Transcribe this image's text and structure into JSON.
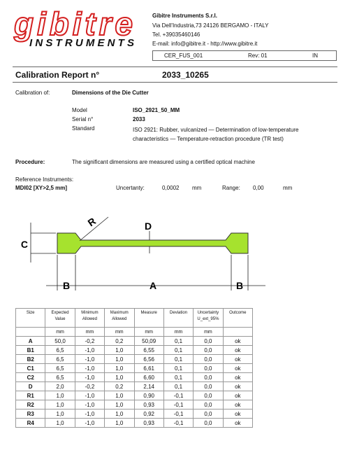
{
  "header": {
    "logo": {
      "brand": "gibitre",
      "sub": "INSTRUMENTS"
    },
    "company": [
      "Gibitre Instruments  S.r.l.",
      "Via Dell'Industria,73 24126 BERGAMO - ITALY",
      "Tel. +39035460146",
      "E-mail: info@gibitre.it - http://www.gibitre.it"
    ],
    "reference": {
      "code": "CER_FUS_001",
      "revision": "Rev: 01",
      "status": "IN"
    }
  },
  "title": {
    "label": "Calibration Report n°",
    "number": "2033_10265"
  },
  "calibration": {
    "label": "Calibration of:",
    "value": "Dimensions of the Die Cutter",
    "fields": [
      {
        "label": "Model",
        "value": "ISO_2921_50_MM"
      },
      {
        "label": "Serial n°",
        "value": "2033"
      },
      {
        "label": "Standard",
        "value": "ISO 2921: Rubber, vulcanized — Determination of low-temperature characteristics — Temperature-retraction procedure (TR test)"
      }
    ]
  },
  "procedure": {
    "label": "Procedure:",
    "text": "The significant dimensions are measured using a certified optical machine"
  },
  "reference_instruments": {
    "label": "Reference Instruments:",
    "instrument": "MDI02 [XY>2,5 mm]",
    "uncertainty_label": "Uncertanty:",
    "uncertainty": "0,0002",
    "uncertainty_unit": "mm",
    "range_label": "Range:",
    "range": "0,00",
    "range_unit": "mm"
  },
  "diagram": {
    "labels": [
      "R",
      "D",
      "C",
      "B",
      "A",
      "B"
    ]
  },
  "table": {
    "headers": [
      "Size",
      "Expected Value",
      "Minimum Allowed",
      "Maximum Allowed",
      "Measure",
      "Deviation",
      "Uncertainty U_ext_95%",
      "Outcome"
    ],
    "units": [
      "mm",
      "mm",
      "mm",
      "mm",
      "mm",
      "mm"
    ],
    "rows": [
      [
        "A",
        "50,0",
        "-0,2",
        "0,2",
        "50,09",
        "0,1",
        "0,0",
        "ok"
      ],
      [
        "B1",
        "6,5",
        "-1,0",
        "1,0",
        "6,55",
        "0,1",
        "0,0",
        "ok"
      ],
      [
        "B2",
        "6,5",
        "-1,0",
        "1,0",
        "6,56",
        "0,1",
        "0,0",
        "ok"
      ],
      [
        "C1",
        "6,5",
        "-1,0",
        "1,0",
        "6,61",
        "0,1",
        "0,0",
        "ok"
      ],
      [
        "C2",
        "6,5",
        "-1,0",
        "1,0",
        "6,60",
        "0,1",
        "0,0",
        "ok"
      ],
      [
        "D",
        "2,0",
        "-0,2",
        "0,2",
        "2,14",
        "0,1",
        "0,0",
        "ok"
      ],
      [
        "R1",
        "1,0",
        "-1,0",
        "1,0",
        "0,90",
        "-0,1",
        "0,0",
        "ok"
      ],
      [
        "R2",
        "1,0",
        "-1,0",
        "1,0",
        "0,93",
        "-0,1",
        "0,0",
        "ok"
      ],
      [
        "R3",
        "1,0",
        "-1,0",
        "1,0",
        "0,92",
        "-0,1",
        "0,0",
        "ok"
      ],
      [
        "R4",
        "1,0",
        "-1,0",
        "1,0",
        "0,93",
        "-0,1",
        "0,0",
        "ok"
      ]
    ]
  }
}
